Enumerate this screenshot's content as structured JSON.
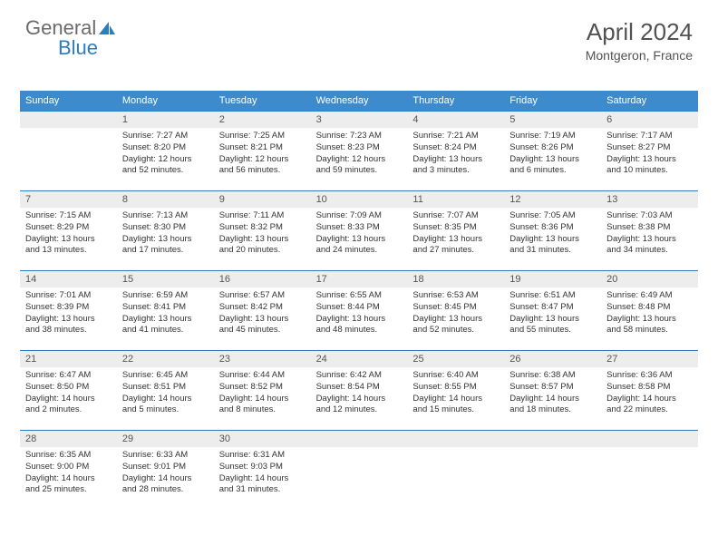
{
  "logo": {
    "text_gray": "General",
    "text_blue": "Blue"
  },
  "header": {
    "title": "April 2024",
    "location": "Montgeron, France"
  },
  "colors": {
    "brand_blue": "#3d8bcc",
    "divider": "#2d7cc0",
    "daynum_bg": "#ededed",
    "text": "#333333",
    "logo_gray": "#6b6b6b"
  },
  "daynames": [
    "Sunday",
    "Monday",
    "Tuesday",
    "Wednesday",
    "Thursday",
    "Friday",
    "Saturday"
  ],
  "start_weekday": 1,
  "days": [
    {
      "n": 1,
      "sr": "7:27 AM",
      "ss": "8:20 PM",
      "dl": "12 hours and 52 minutes."
    },
    {
      "n": 2,
      "sr": "7:25 AM",
      "ss": "8:21 PM",
      "dl": "12 hours and 56 minutes."
    },
    {
      "n": 3,
      "sr": "7:23 AM",
      "ss": "8:23 PM",
      "dl": "12 hours and 59 minutes."
    },
    {
      "n": 4,
      "sr": "7:21 AM",
      "ss": "8:24 PM",
      "dl": "13 hours and 3 minutes."
    },
    {
      "n": 5,
      "sr": "7:19 AM",
      "ss": "8:26 PM",
      "dl": "13 hours and 6 minutes."
    },
    {
      "n": 6,
      "sr": "7:17 AM",
      "ss": "8:27 PM",
      "dl": "13 hours and 10 minutes."
    },
    {
      "n": 7,
      "sr": "7:15 AM",
      "ss": "8:29 PM",
      "dl": "13 hours and 13 minutes."
    },
    {
      "n": 8,
      "sr": "7:13 AM",
      "ss": "8:30 PM",
      "dl": "13 hours and 17 minutes."
    },
    {
      "n": 9,
      "sr": "7:11 AM",
      "ss": "8:32 PM",
      "dl": "13 hours and 20 minutes."
    },
    {
      "n": 10,
      "sr": "7:09 AM",
      "ss": "8:33 PM",
      "dl": "13 hours and 24 minutes."
    },
    {
      "n": 11,
      "sr": "7:07 AM",
      "ss": "8:35 PM",
      "dl": "13 hours and 27 minutes."
    },
    {
      "n": 12,
      "sr": "7:05 AM",
      "ss": "8:36 PM",
      "dl": "13 hours and 31 minutes."
    },
    {
      "n": 13,
      "sr": "7:03 AM",
      "ss": "8:38 PM",
      "dl": "13 hours and 34 minutes."
    },
    {
      "n": 14,
      "sr": "7:01 AM",
      "ss": "8:39 PM",
      "dl": "13 hours and 38 minutes."
    },
    {
      "n": 15,
      "sr": "6:59 AM",
      "ss": "8:41 PM",
      "dl": "13 hours and 41 minutes."
    },
    {
      "n": 16,
      "sr": "6:57 AM",
      "ss": "8:42 PM",
      "dl": "13 hours and 45 minutes."
    },
    {
      "n": 17,
      "sr": "6:55 AM",
      "ss": "8:44 PM",
      "dl": "13 hours and 48 minutes."
    },
    {
      "n": 18,
      "sr": "6:53 AM",
      "ss": "8:45 PM",
      "dl": "13 hours and 52 minutes."
    },
    {
      "n": 19,
      "sr": "6:51 AM",
      "ss": "8:47 PM",
      "dl": "13 hours and 55 minutes."
    },
    {
      "n": 20,
      "sr": "6:49 AM",
      "ss": "8:48 PM",
      "dl": "13 hours and 58 minutes."
    },
    {
      "n": 21,
      "sr": "6:47 AM",
      "ss": "8:50 PM",
      "dl": "14 hours and 2 minutes."
    },
    {
      "n": 22,
      "sr": "6:45 AM",
      "ss": "8:51 PM",
      "dl": "14 hours and 5 minutes."
    },
    {
      "n": 23,
      "sr": "6:44 AM",
      "ss": "8:52 PM",
      "dl": "14 hours and 8 minutes."
    },
    {
      "n": 24,
      "sr": "6:42 AM",
      "ss": "8:54 PM",
      "dl": "14 hours and 12 minutes."
    },
    {
      "n": 25,
      "sr": "6:40 AM",
      "ss": "8:55 PM",
      "dl": "14 hours and 15 minutes."
    },
    {
      "n": 26,
      "sr": "6:38 AM",
      "ss": "8:57 PM",
      "dl": "14 hours and 18 minutes."
    },
    {
      "n": 27,
      "sr": "6:36 AM",
      "ss": "8:58 PM",
      "dl": "14 hours and 22 minutes."
    },
    {
      "n": 28,
      "sr": "6:35 AM",
      "ss": "9:00 PM",
      "dl": "14 hours and 25 minutes."
    },
    {
      "n": 29,
      "sr": "6:33 AM",
      "ss": "9:01 PM",
      "dl": "14 hours and 28 minutes."
    },
    {
      "n": 30,
      "sr": "6:31 AM",
      "ss": "9:03 PM",
      "dl": "14 hours and 31 minutes."
    }
  ],
  "labels": {
    "sunrise": "Sunrise:",
    "sunset": "Sunset:",
    "daylight": "Daylight:"
  }
}
